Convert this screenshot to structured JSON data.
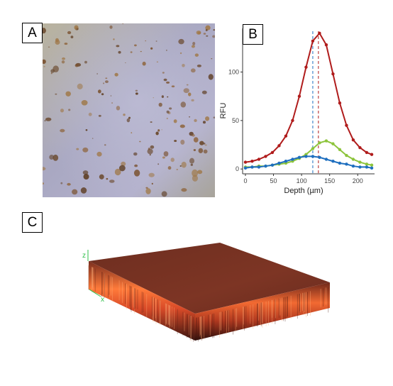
{
  "panels": {
    "a": "A",
    "b": "B",
    "c": "C"
  },
  "axes3d": {
    "z": "z",
    "x": "x"
  },
  "colors": {
    "red": "#b01c1c",
    "green": "#8dc43c",
    "blue": "#1f6fbf",
    "axis3d": "#2fbf4a"
  },
  "chart_data": {
    "type": "line",
    "xlabel": "Depth (µm)",
    "ylabel": "RFU",
    "xlim": [
      -5,
      230
    ],
    "ylim": [
      -5,
      145
    ],
    "xticks": [
      0,
      50,
      100,
      150,
      200
    ],
    "yticks": [
      0,
      50,
      100
    ],
    "grid": false,
    "series": [
      {
        "color": "#b01c1c",
        "x": [
          0,
          12,
          24,
          36,
          48,
          60,
          72,
          84,
          96,
          108,
          120,
          132,
          144,
          156,
          168,
          180,
          192,
          204,
          216,
          225
        ],
        "values": [
          7,
          8,
          10,
          13,
          17,
          24,
          34,
          50,
          75,
          105,
          132,
          140,
          128,
          98,
          68,
          45,
          30,
          22,
          17,
          15
        ]
      },
      {
        "color": "#8dc43c",
        "x": [
          0,
          12,
          24,
          36,
          48,
          60,
          72,
          84,
          96,
          108,
          120,
          132,
          144,
          156,
          168,
          180,
          192,
          204,
          216,
          225
        ],
        "values": [
          2,
          2,
          3,
          3,
          4,
          5,
          6,
          8,
          11,
          15,
          21,
          27,
          29,
          26,
          20,
          14,
          10,
          7,
          5,
          4
        ]
      },
      {
        "color": "#1f6fbf",
        "x": [
          0,
          12,
          24,
          36,
          48,
          60,
          72,
          84,
          96,
          108,
          120,
          132,
          144,
          156,
          168,
          180,
          192,
          204,
          216,
          225
        ],
        "values": [
          1,
          2,
          2,
          3,
          4,
          6,
          8,
          10,
          12,
          13,
          13,
          12,
          10,
          8,
          6,
          5,
          3,
          2,
          2,
          1
        ]
      }
    ],
    "peak_markers": [
      {
        "x": 120,
        "color": "#1f6fbf"
      },
      {
        "x": 130,
        "color": "#b01c1c"
      }
    ]
  }
}
